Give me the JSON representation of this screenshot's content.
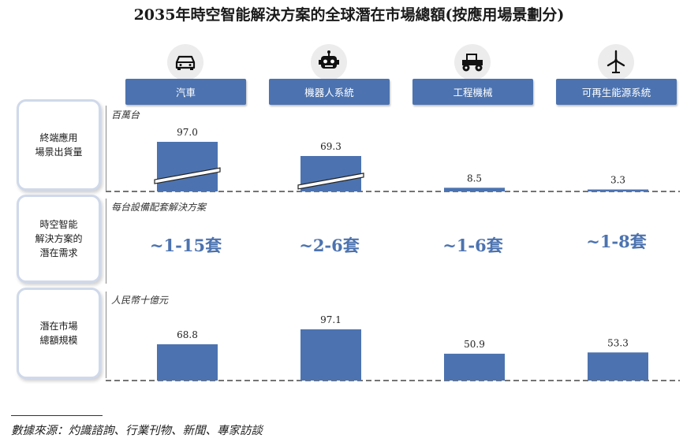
{
  "title": "2035年時空智能解決方案的全球潛在市場總額(按應用場景劃分)",
  "colors": {
    "accent": "#4c73b0",
    "label_border": "#cfd9ea"
  },
  "categories": [
    {
      "label": "汽車",
      "icon": "car-icon"
    },
    {
      "label": "機器人系統",
      "icon": "robot-icon"
    },
    {
      "label": "工程機械",
      "icon": "tractor-icon"
    },
    {
      "label": "可再生能源系統",
      "icon": "wind-turbine-icon"
    }
  ],
  "rows": {
    "shipments": {
      "label": "終端應用\n場景出貨量",
      "unit": "百萬台"
    },
    "demand": {
      "label": "時空智能\n解決方案的\n潛在需求",
      "unit": "每台設備配套解決方案",
      "values": [
        "~1-15套",
        "~2-6套",
        "~1-6套",
        "~1-8套"
      ]
    },
    "market": {
      "label": "潛在市場\n總額規模",
      "unit": "人民幣十億元"
    }
  },
  "chart_data": [
    {
      "type": "bar",
      "title": "",
      "categories": [
        "汽車",
        "機器人系統",
        "工程機械",
        "可再生能源系統"
      ],
      "values": [
        97.0,
        69.3,
        8.5,
        3.3
      ],
      "data_labels": [
        "97.0",
        "69.3",
        "8.5",
        "3.3"
      ],
      "ylabel": "百萬台",
      "axis_break": [
        true,
        true,
        false,
        false
      ]
    },
    {
      "type": "bar",
      "title": "",
      "categories": [
        "汽車",
        "機器人系統",
        "工程機械",
        "可再生能源系統"
      ],
      "values": [
        68.8,
        97.1,
        50.9,
        53.3
      ],
      "data_labels": [
        "68.8",
        "97.1",
        "50.9",
        "53.3"
      ],
      "ylabel": "人民幣十億元",
      "ylim": [
        0,
        100
      ]
    }
  ],
  "source": "數據來源：灼識諮詢、行業刊物、新聞、專家訪談"
}
